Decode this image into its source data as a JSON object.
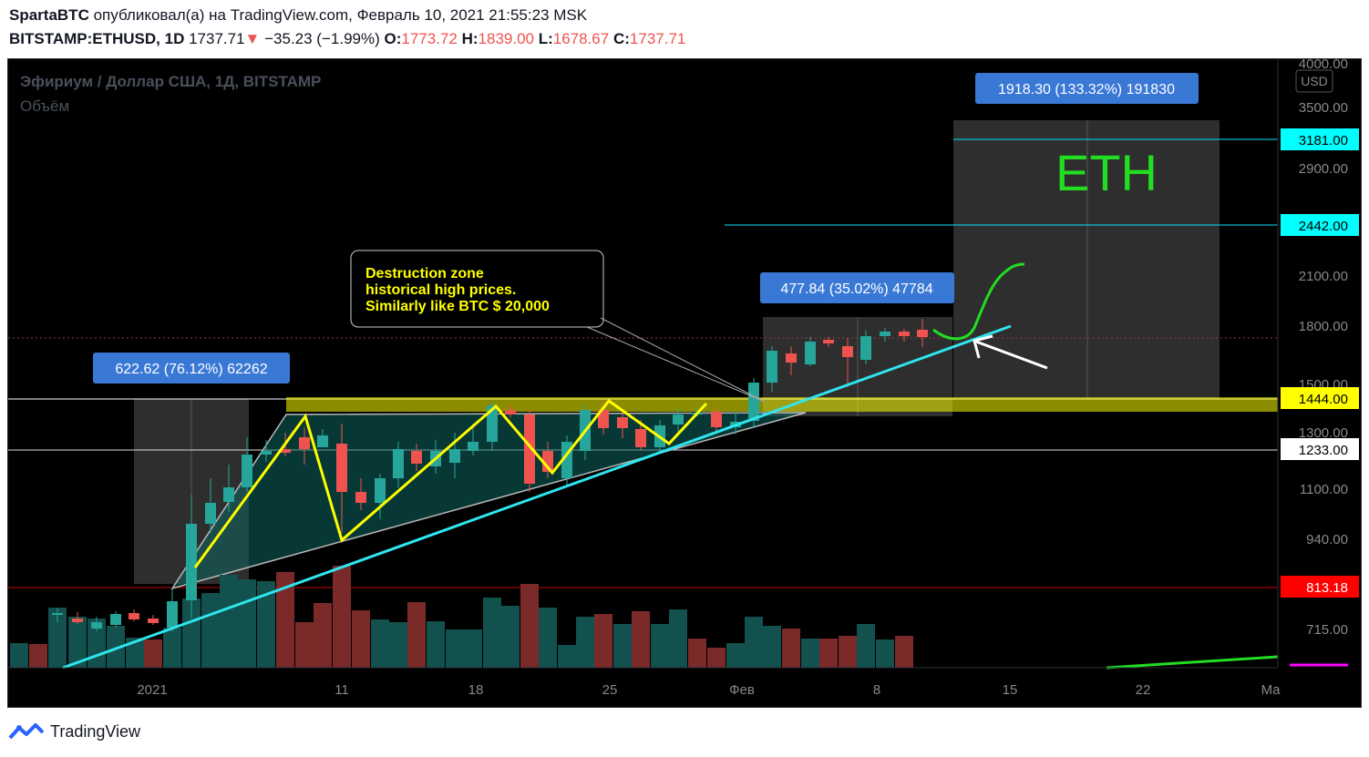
{
  "header": {
    "author": "SpartaBTC",
    "published_text": "опубликовал(а) на TradingView.com, Февраль 10, 2021 21:55:23 MSK",
    "symbol": "BITSTAMP:ETHUSD, 1D",
    "last": "1737.71",
    "change_arrow": "▼",
    "change": "−35.23 (−1.99%)",
    "o_label": "O:",
    "o_value": "1773.72",
    "h_label": "H:",
    "h_value": "1839.00",
    "l_label": "L:",
    "l_value": "1678.67",
    "c_label": "C:",
    "c_value": "1737.71"
  },
  "chart": {
    "title": "Эфириум / Доллар США, 1Д, BITSTAMP",
    "volume_label": "Объём",
    "currency_button": "USD",
    "y_ticks": [
      "4000.00",
      "3500.00",
      "2900.00",
      "2100.00",
      "1800.00",
      "1500.00",
      "1300.00",
      "1100.00",
      "940.00",
      "715.00"
    ],
    "x_ticks": [
      "2021",
      "11",
      "18",
      "25",
      "Фев",
      "8",
      "15",
      "22",
      "Ma"
    ],
    "price_badges": [
      {
        "value": "3181.00",
        "bg": "#00ffff",
        "fg": "#000000"
      },
      {
        "value": "2442.00",
        "bg": "#00ffff",
        "fg": "#000000"
      },
      {
        "value": "1444.00",
        "bg": "#ffff00",
        "fg": "#000000"
      },
      {
        "value": "1233.00",
        "bg": "#ffffff",
        "fg": "#000000"
      },
      {
        "value": "813.18",
        "bg": "#ff0000",
        "fg": "#ffffff"
      }
    ],
    "measure_labels": [
      "1918.30 (133.32%) 191830",
      "477.84 (35.02%) 47784",
      "622.62 (76.12%) 62262"
    ],
    "callout_lines": [
      "Destruction zone",
      "historical high prices.",
      "Similarly like BTC $ 20,000"
    ],
    "big_label": "ETH",
    "colors": {
      "bull": "#26a69a",
      "bear": "#ef5350",
      "zone": "#ffff00",
      "trend": "#2ee6f0",
      "pattern": "#ffff00",
      "projection": "#22dd22"
    }
  },
  "footer": {
    "brand": "TradingView"
  }
}
